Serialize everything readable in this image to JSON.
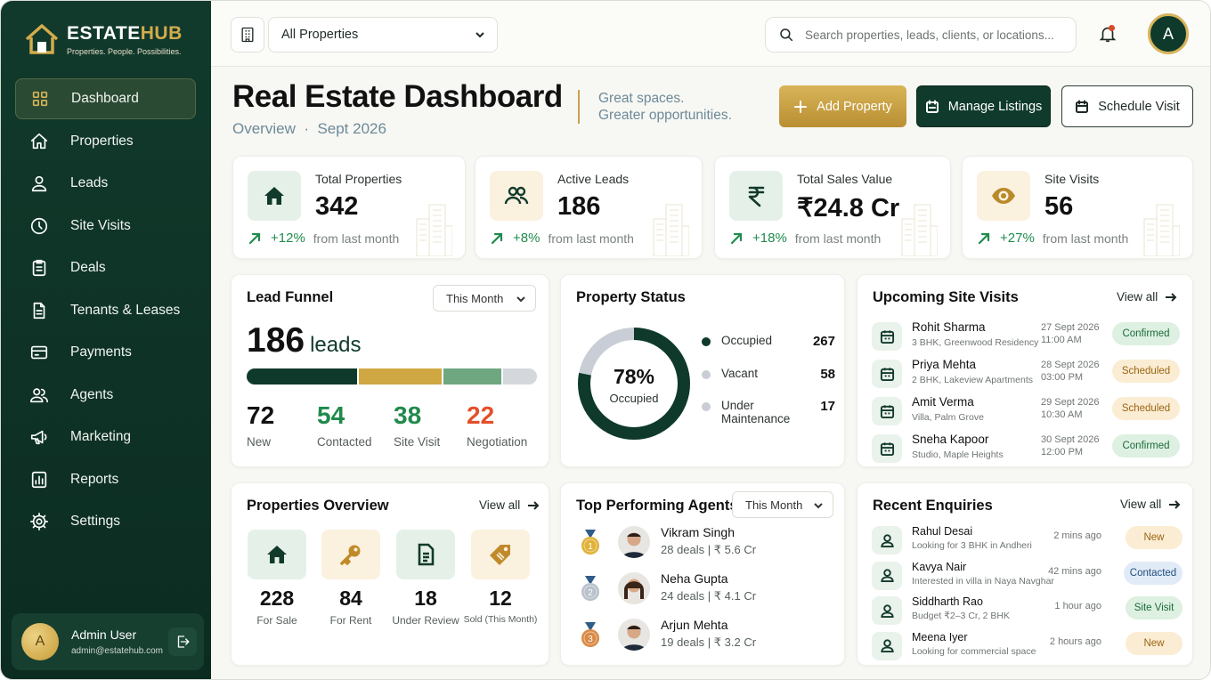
{
  "brand": {
    "title_main": "ESTATE",
    "title_accent": "HUB",
    "tagline": "Properties. People. Possibilities."
  },
  "sidebar": {
    "items": [
      {
        "label": "Dashboard",
        "icon": "grid-icon",
        "active": true
      },
      {
        "label": "Properties",
        "icon": "home-icon"
      },
      {
        "label": "Leads",
        "icon": "user-icon"
      },
      {
        "label": "Site Visits",
        "icon": "clock-icon"
      },
      {
        "label": "Deals",
        "icon": "clipboard-icon"
      },
      {
        "label": "Tenants & Leases",
        "icon": "document-icon"
      },
      {
        "label": "Payments",
        "icon": "wallet-icon"
      },
      {
        "label": "Agents",
        "icon": "users-icon"
      },
      {
        "label": "Marketing",
        "icon": "megaphone-icon"
      },
      {
        "label": "Reports",
        "icon": "report-icon"
      },
      {
        "label": "Settings",
        "icon": "gear-icon"
      }
    ],
    "user": {
      "initial": "A",
      "name": "Admin User",
      "email": "admin@estatehub.com"
    }
  },
  "topbar": {
    "property_select": "All Properties",
    "search_placeholder": "Search properties, leads, clients, or locations...",
    "avatar_initial": "A"
  },
  "header": {
    "title": "Real Estate Dashboard",
    "subtitle_left": "Overview",
    "subtitle_sep": "·",
    "subtitle_right": "Sept 2026",
    "tagline_1": "Great spaces.",
    "tagline_2": "Greater opportunities.",
    "buttons": {
      "add": "Add Property",
      "manage": "Manage Listings",
      "schedule": "Schedule Visit"
    }
  },
  "stats": [
    {
      "label": "Total Properties",
      "value": "342",
      "change": "+12%",
      "note": "from last month",
      "icon": "home-icon"
    },
    {
      "label": "Active Leads",
      "value": "186",
      "change": "+8%",
      "note": "from last month",
      "icon": "users-icon"
    },
    {
      "label": "Total Sales Value",
      "value": "₹24.8 Cr",
      "change": "+18%",
      "note": "from last month",
      "icon": "rupee-icon"
    },
    {
      "label": "Site Visits",
      "value": "56",
      "change": "+27%",
      "note": "from last month",
      "icon": "eye-icon"
    }
  ],
  "lead_funnel": {
    "title": "Lead Funnel",
    "period": "This Month",
    "total": "186",
    "unit": "leads",
    "stages": [
      {
        "count": 72,
        "label": "New",
        "color": "#0f3a2b"
      },
      {
        "count": 54,
        "label": "Contacted",
        "color": "#cfa843"
      },
      {
        "count": 38,
        "label": "Site Visit",
        "color": "#6fa781"
      },
      {
        "count": 22,
        "label": "Negotiation",
        "color": "#d4d8dc"
      }
    ],
    "number_colors": [
      "#111111",
      "#1f8a4c",
      "#1f8a4c",
      "#e2502b"
    ]
  },
  "property_status": {
    "title": "Property Status",
    "percent": "78%",
    "percent_value": 78,
    "center_label": "Occupied",
    "rows": [
      {
        "label": "Occupied",
        "value": "267",
        "color": "#0f3a2b"
      },
      {
        "label": "Vacant",
        "value": "58",
        "color": "#c9ced6"
      },
      {
        "label": "Under Maintenance",
        "value": "17",
        "color": "#c9ced6"
      }
    ]
  },
  "upcoming_visits": {
    "title": "Upcoming Site Visits",
    "view_all": "View all",
    "items": [
      {
        "name": "Rohit Sharma",
        "detail": "3 BHK, Greenwood Residency",
        "date": "27 Sept 2026",
        "time": "11:00 AM",
        "status": "Confirmed",
        "kind": "confirmed"
      },
      {
        "name": "Priya Mehta",
        "detail": "2 BHK, Lakeview Apartments",
        "date": "28 Sept 2026",
        "time": "03:00 PM",
        "status": "Scheduled",
        "kind": "scheduled"
      },
      {
        "name": "Amit Verma",
        "detail": "Villa, Palm Grove",
        "date": "29 Sept 2026",
        "time": "10:30 AM",
        "status": "Scheduled",
        "kind": "scheduled"
      },
      {
        "name": "Sneha Kapoor",
        "detail": "Studio, Maple Heights",
        "date": "30 Sept 2026",
        "time": "12:00 PM",
        "status": "Confirmed",
        "kind": "confirmed"
      }
    ]
  },
  "properties_overview": {
    "title": "Properties Overview",
    "view_all": "View all",
    "items": [
      {
        "value": "228",
        "label": "For Sale",
        "icon": "home-icon",
        "bg": "#e5f1e8",
        "fg": "#123a2c"
      },
      {
        "value": "84",
        "label": "For Rent",
        "icon": "key-icon",
        "bg": "#fbf1df",
        "fg": "#c08a2a"
      },
      {
        "value": "18",
        "label": "Under Review",
        "icon": "document-icon",
        "bg": "#e5f1e8",
        "fg": "#123a2c"
      },
      {
        "value": "12",
        "label": "Sold (This Month)",
        "icon": "tag-icon",
        "bg": "#fbf1df",
        "fg": "#c08a2a"
      }
    ]
  },
  "top_agents": {
    "title": "Top Performing Agents",
    "period": "This Month",
    "items": [
      {
        "rank": "1",
        "name": "Vikram Singh",
        "stats": "28 deals | ₹ 5.6 Cr",
        "medal": "#e0b23a",
        "suit": "#1d2a3a",
        "gender": "m"
      },
      {
        "rank": "2",
        "name": "Neha Gupta",
        "stats": "24 deals | ₹ 4.1 Cr",
        "medal": "#b9c1cc",
        "suit": "#e9e4dc",
        "gender": "f"
      },
      {
        "rank": "3",
        "name": "Arjun Mehta",
        "stats": "19 deals | ₹ 3.2 Cr",
        "medal": "#d98a45",
        "suit": "#1d2a3a",
        "gender": "m"
      }
    ]
  },
  "recent_enquiries": {
    "title": "Recent Enquiries",
    "view_all": "View all",
    "items": [
      {
        "name": "Rahul Desai",
        "detail": "Looking for 3 BHK in Andheri",
        "time": "2 mins ago",
        "status": "New",
        "kind": "new"
      },
      {
        "name": "Kavya Nair",
        "detail": "Interested in villa in Naya Navghar",
        "time": "42 mins ago",
        "status": "Contacted",
        "kind": "contacted"
      },
      {
        "name": "Siddharth Rao",
        "detail": "Budget ₹2–3 Cr, 2 BHK",
        "time": "1 hour ago",
        "status": "Site Visit",
        "kind": "sitevisit"
      },
      {
        "name": "Meena Iyer",
        "detail": "Looking for commercial space",
        "time": "2 hours ago",
        "status": "New",
        "kind": "new"
      }
    ]
  }
}
